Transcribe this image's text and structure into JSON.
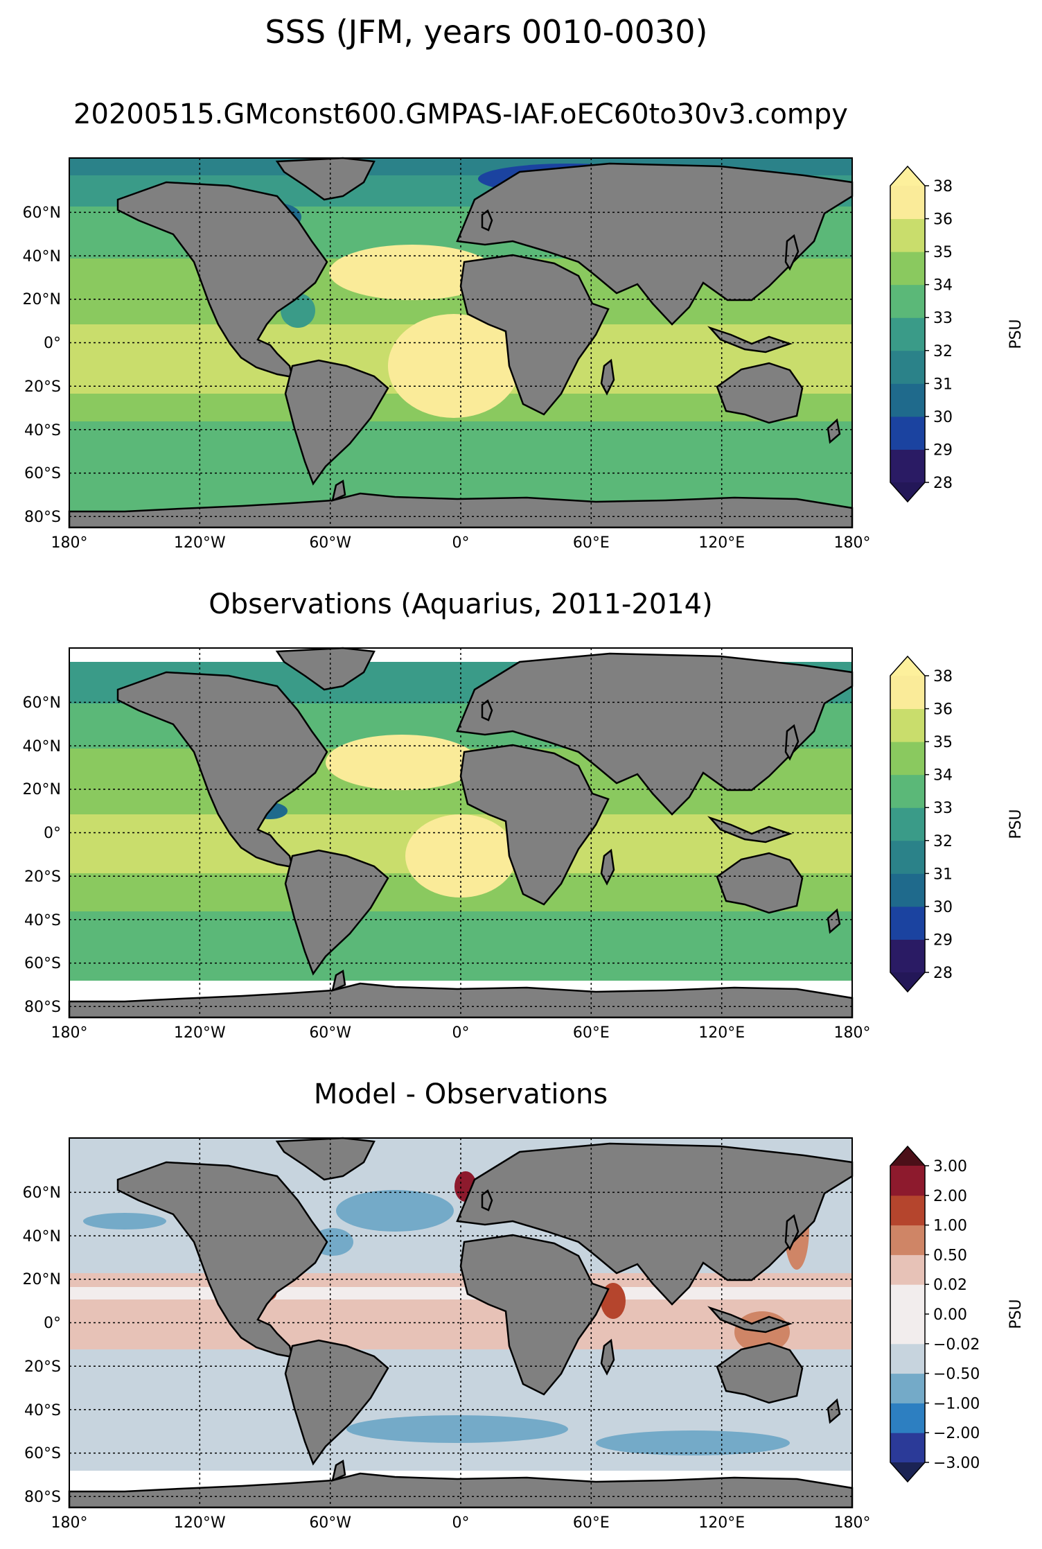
{
  "figure": {
    "suptitle": "SSS (JFM, years 0010-0030)"
  },
  "panels": [
    {
      "id": "model",
      "title": "20200515.GMconst600.GMPAS-IAF.oEC60to30v3.compy",
      "kind": "field",
      "colorbar": {
        "label": "PSU",
        "ticks": [
          "28",
          "29",
          "30",
          "31",
          "32",
          "33",
          "34",
          "35",
          "36",
          "38"
        ],
        "colors": [
          "#2a1b64",
          "#1b43a0",
          "#1f6a8c",
          "#2b8289",
          "#3a9b88",
          "#5bb878",
          "#8ac95f",
          "#c9dd6c",
          "#faeb99"
        ],
        "extend_low_color": "#231758",
        "extend_high_color": "#fdf09c"
      }
    },
    {
      "id": "obs",
      "title": "Observations (Aquarius, 2011-2014)",
      "kind": "field",
      "colorbar": {
        "label": "PSU",
        "ticks": [
          "28",
          "29",
          "30",
          "31",
          "32",
          "33",
          "34",
          "35",
          "36",
          "38"
        ],
        "colors": [
          "#2a1b64",
          "#1b43a0",
          "#1f6a8c",
          "#2b8289",
          "#3a9b88",
          "#5bb878",
          "#8ac95f",
          "#c9dd6c",
          "#faeb99"
        ],
        "extend_low_color": "#231758",
        "extend_high_color": "#fdf09c"
      }
    },
    {
      "id": "bias",
      "title": "Model - Observations",
      "kind": "bias",
      "colorbar": {
        "label": "PSU",
        "ticks": [
          "−3.00",
          "−2.00",
          "−1.00",
          "−0.50",
          "−0.02",
          "0.00",
          "0.02",
          "0.50",
          "1.00",
          "2.00",
          "3.00"
        ],
        "colors": [
          "#2b3a98",
          "#2d7fc1",
          "#74aac8",
          "#c7d4de",
          "#f2eded",
          "#f2eded",
          "#e7c2b7",
          "#cf8566",
          "#b5452d",
          "#8d1a2d"
        ],
        "extend_low_color": "#1b2354",
        "extend_high_color": "#4b0f18"
      }
    }
  ],
  "axes": {
    "lon_ticks": [
      "180°",
      "120°W",
      "60°W",
      "0°",
      "60°E",
      "120°E",
      "180°"
    ],
    "lat_ticks": [
      "60°N",
      "40°N",
      "20°N",
      "0°",
      "20°S",
      "40°S",
      "60°S",
      "80°S"
    ]
  },
  "chart_data": [
    {
      "type": "heatmap",
      "title": "20200515.GMconst600.GMPAS-IAF.oEC60to30v3.compy",
      "variable": "Sea surface salinity, JFM mean, model years 0010-0030",
      "x_range": [
        -180,
        180
      ],
      "y_range": [
        -85,
        85
      ],
      "xticks": [
        -180,
        -120,
        -60,
        0,
        60,
        120,
        180
      ],
      "yticks": [
        60,
        40,
        20,
        0,
        -20,
        -40,
        -60,
        -80
      ],
      "colorbar_levels": [
        28,
        29,
        30,
        31,
        32,
        33,
        34,
        35,
        36,
        38
      ],
      "units": "PSU"
    },
    {
      "type": "heatmap",
      "title": "Observations (Aquarius, 2011-2014)",
      "variable": "Sea surface salinity, JFM mean",
      "x_range": [
        -180,
        180
      ],
      "y_range": [
        -85,
        85
      ],
      "xticks": [
        -180,
        -120,
        -60,
        0,
        60,
        120,
        180
      ],
      "yticks": [
        60,
        40,
        20,
        0,
        -20,
        -40,
        -60,
        -80
      ],
      "colorbar_levels": [
        28,
        29,
        30,
        31,
        32,
        33,
        34,
        35,
        36,
        38
      ],
      "units": "PSU"
    },
    {
      "type": "heatmap",
      "title": "Model - Observations",
      "variable": "SSS bias",
      "x_range": [
        -180,
        180
      ],
      "y_range": [
        -85,
        85
      ],
      "xticks": [
        -180,
        -120,
        -60,
        0,
        60,
        120,
        180
      ],
      "yticks": [
        60,
        40,
        20,
        0,
        -20,
        -40,
        -60,
        -80
      ],
      "colorbar_levels": [
        -3.0,
        -2.0,
        -1.0,
        -0.5,
        -0.02,
        0.0,
        0.02,
        0.5,
        1.0,
        2.0,
        3.0
      ],
      "units": "PSU"
    }
  ]
}
